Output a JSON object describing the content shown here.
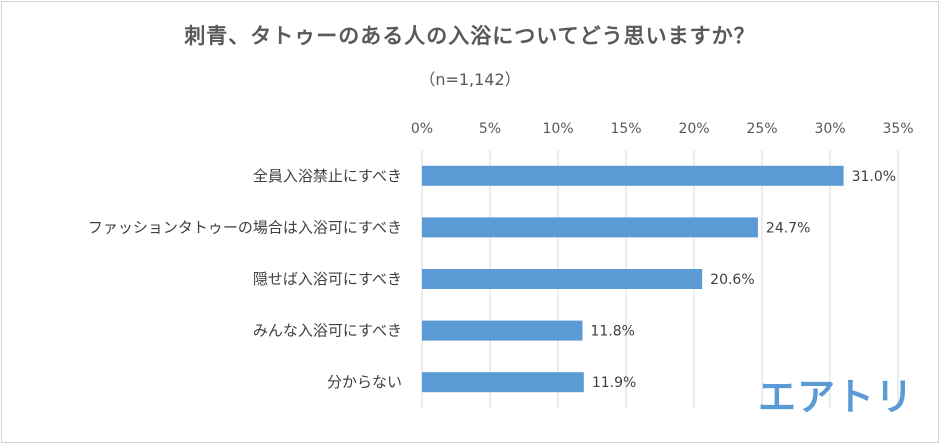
{
  "chart_data": {
    "type": "bar",
    "orientation": "horizontal",
    "title": "刺青、タトゥーのある人の入浴についてどう思いますか？",
    "subtitle": "（n=1,142）",
    "categories": [
      "全員入浴禁止にすべき",
      "ファッションタトゥーの場合は入浴可にすべき",
      "隠せば入浴可にすべき",
      "みんな入浴可にすべき",
      "分からない"
    ],
    "values": [
      31.0,
      24.7,
      20.6,
      11.8,
      11.9
    ],
    "data_labels": [
      "31.0%",
      "24.7%",
      "20.6%",
      "11.8%",
      "11.9%"
    ],
    "xlim": [
      0,
      35
    ],
    "x_ticks": [
      0,
      5,
      10,
      15,
      20,
      25,
      30,
      35
    ],
    "x_tick_labels": [
      "0%",
      "5%",
      "10%",
      "15%",
      "20%",
      "25%",
      "30%",
      "35%"
    ],
    "axis_position": "top",
    "grid": true,
    "bar_color": "#5b9bd5",
    "grid_color": "#d9d9d9"
  },
  "logo": {
    "text": "エアトリ",
    "color": "#5b9bd5"
  }
}
